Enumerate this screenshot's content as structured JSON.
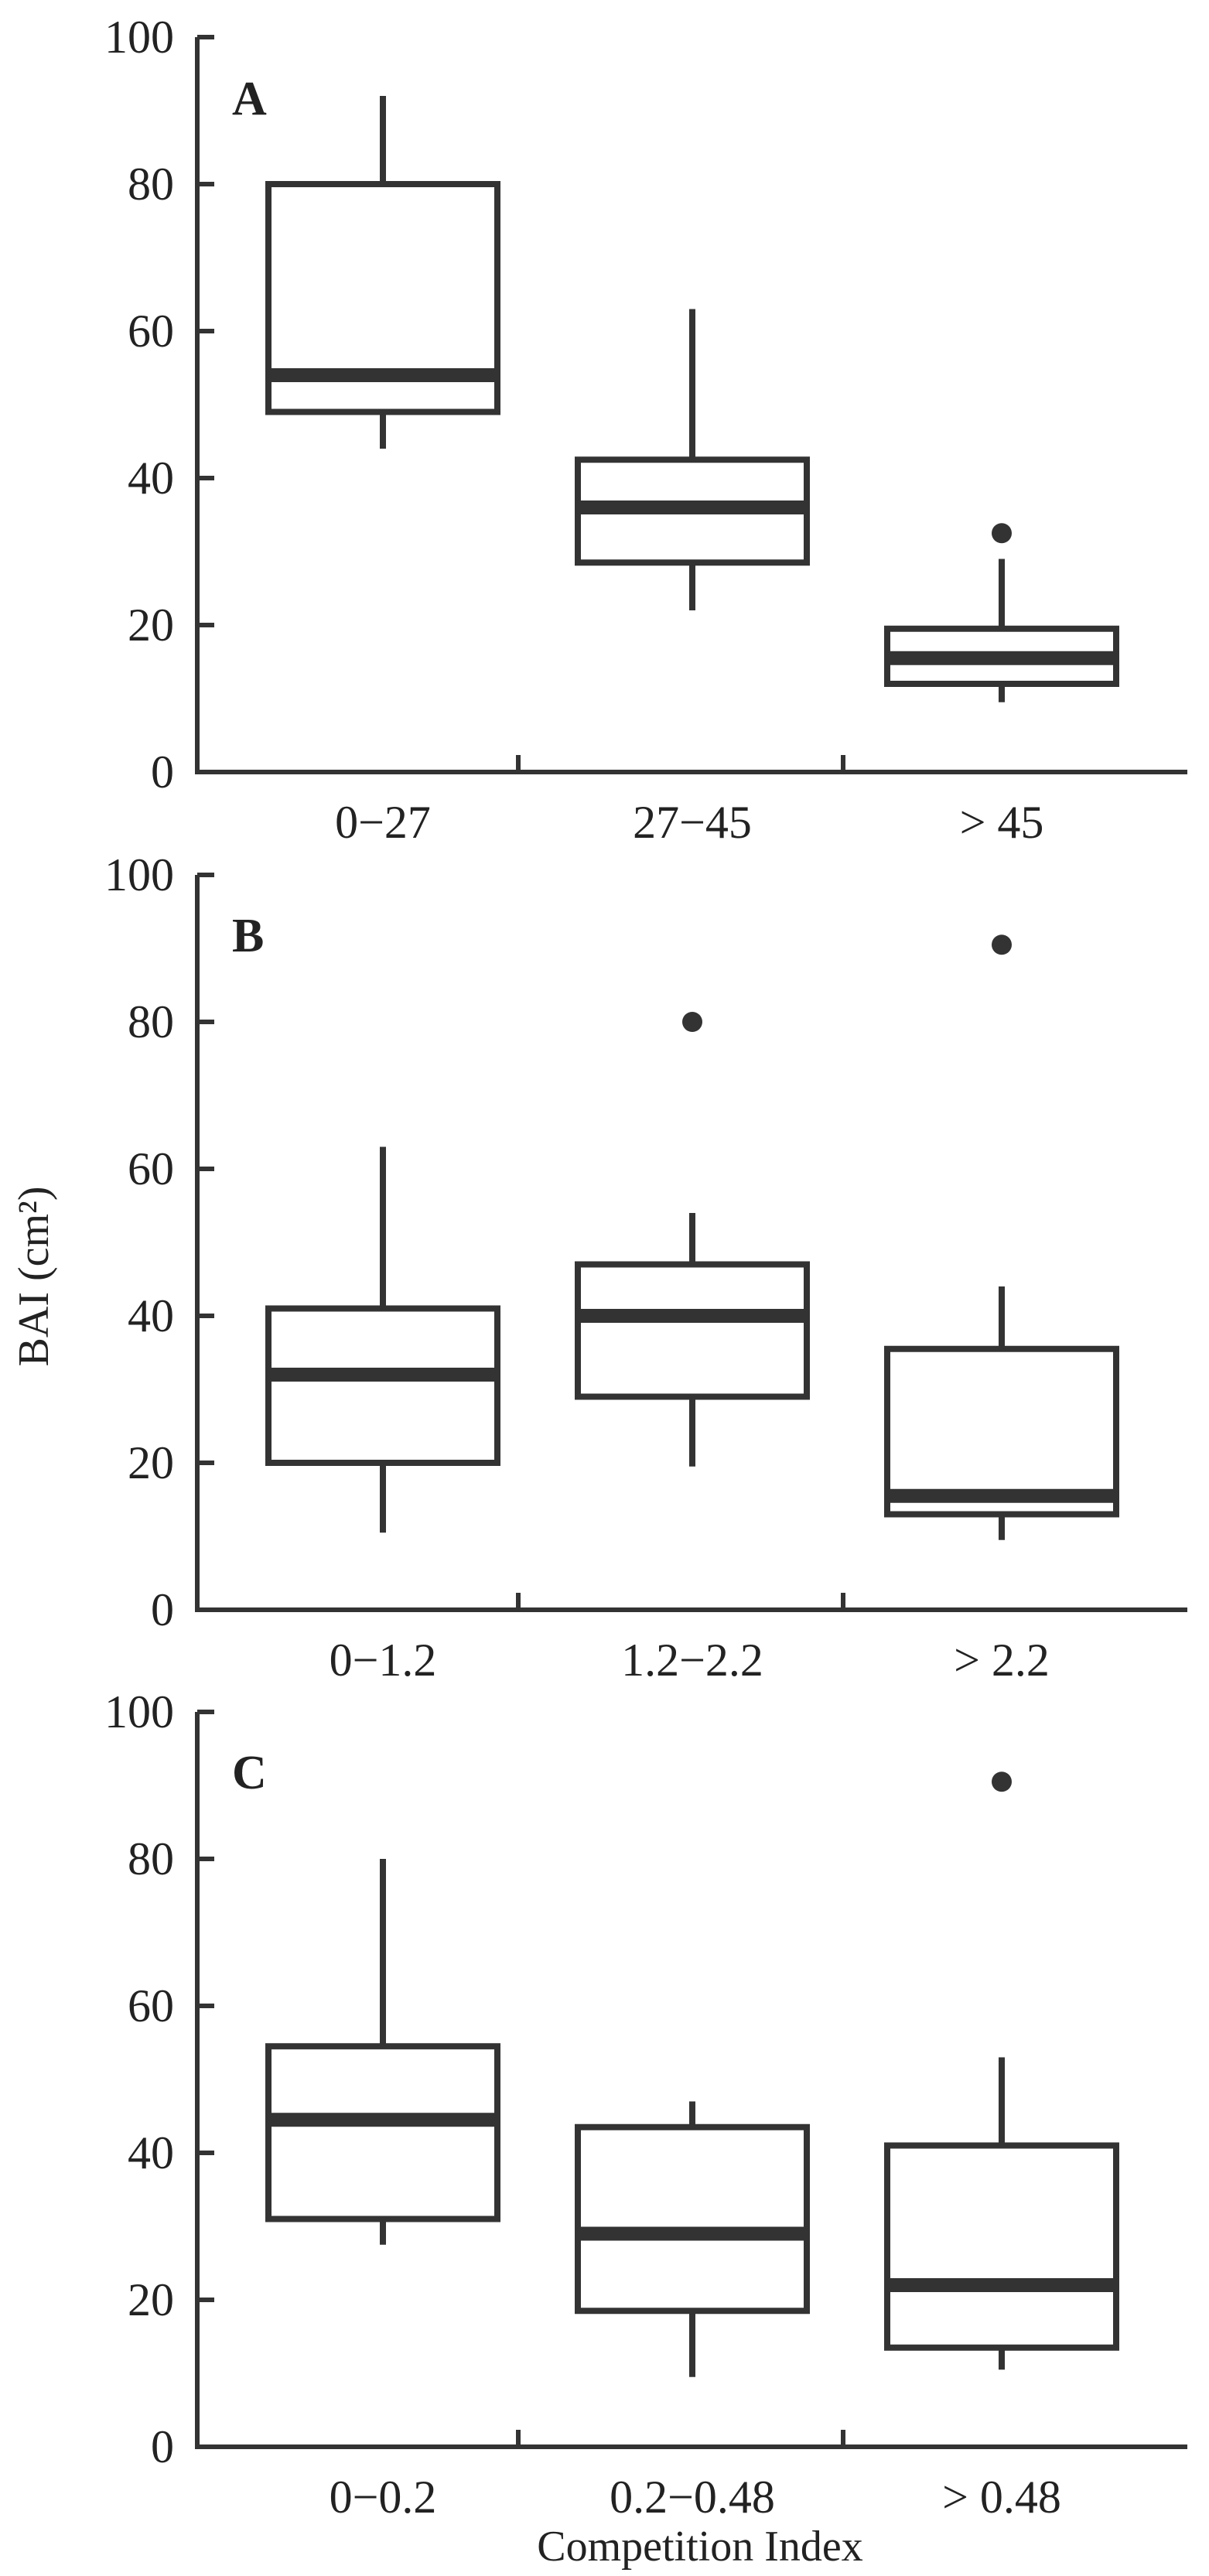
{
  "colors": {
    "ink": "#333333",
    "text": "#222222",
    "background": "#ffffff"
  },
  "chart_data": {
    "type": "boxplot",
    "xlabel": "Competition Index",
    "ylabel": "BAI (cm²)",
    "ylim": [
      0,
      100
    ],
    "yticks": [
      "0",
      "20",
      "40",
      "60",
      "80",
      "100"
    ],
    "grid": false,
    "legend": "none",
    "panels": [
      {
        "letter": "A",
        "categories": [
          "0−27",
          "27−45",
          "> 45"
        ],
        "boxes": [
          {
            "whisker_low": 44,
            "q1": 49,
            "median": 54,
            "q3": 80,
            "whisker_high": 92,
            "outliers": []
          },
          {
            "whisker_low": 22,
            "q1": 28.5,
            "median": 36,
            "q3": 42.5,
            "whisker_high": 63,
            "outliers": []
          },
          {
            "whisker_low": 9.5,
            "q1": 12,
            "median": 15.5,
            "q3": 19.5,
            "whisker_high": 29,
            "outliers": [
              32.5
            ]
          }
        ]
      },
      {
        "letter": "B",
        "categories": [
          "0−1.2",
          "1.2−2.2",
          "> 2.2"
        ],
        "boxes": [
          {
            "whisker_low": 10.5,
            "q1": 20,
            "median": 32,
            "q3": 41,
            "whisker_high": 63,
            "outliers": []
          },
          {
            "whisker_low": 19.5,
            "q1": 29,
            "median": 40,
            "q3": 47,
            "whisker_high": 54,
            "outliers": [
              80
            ]
          },
          {
            "whisker_low": 9.5,
            "q1": 13,
            "median": 15.5,
            "q3": 35.5,
            "whisker_high": 44,
            "outliers": [
              90.5
            ]
          }
        ]
      },
      {
        "letter": "C",
        "categories": [
          "0−0.2",
          "0.2−0.48",
          "> 0.48"
        ],
        "boxes": [
          {
            "whisker_low": 27.5,
            "q1": 31,
            "median": 44.5,
            "q3": 54.5,
            "whisker_high": 80,
            "outliers": []
          },
          {
            "whisker_low": 9.5,
            "q1": 18.5,
            "median": 29,
            "q3": 43.5,
            "whisker_high": 47,
            "outliers": []
          },
          {
            "whisker_low": 10.5,
            "q1": 13.5,
            "median": 22,
            "q3": 41,
            "whisker_high": 53,
            "outliers": [
              90.5
            ]
          }
        ]
      }
    ]
  }
}
